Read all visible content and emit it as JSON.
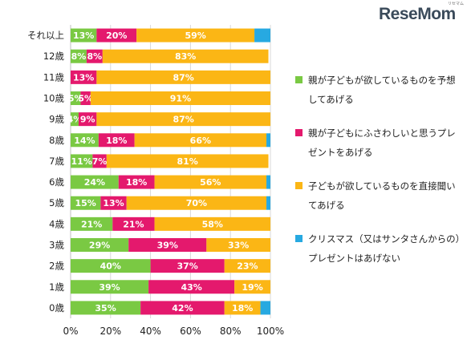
{
  "brand": {
    "logo_text": "ReseMom",
    "logo_sub": "リセマム"
  },
  "legend": [
    {
      "label": "親が子どもが欲しているものを予想してあげる",
      "color": "#7ac943"
    },
    {
      "label": "親が子どもにふさわしいと思うプレゼントをあげる",
      "color": "#e4196d"
    },
    {
      "label": "子どもが欲しているものを直接聞いてあげる",
      "color": "#fbb615"
    },
    {
      "label": "クリスマス（又はサンタさんからの）プレゼントはあげない",
      "color": "#27a9e1"
    }
  ],
  "chart_data": {
    "type": "bar",
    "orientation": "horizontal",
    "stacked": true,
    "categories": [
      "それ以上",
      "12歳",
      "11歳",
      "10歳",
      "9歳",
      "8歳",
      "7歳",
      "6歳",
      "5歳",
      "4歳",
      "3歳",
      "2歳",
      "1歳",
      "0歳"
    ],
    "series": [
      {
        "name": "親が子どもが欲しているものを予想してあげる",
        "color": "#7ac943",
        "values": [
          13,
          8,
          0,
          5,
          4,
          14,
          11,
          24,
          15,
          21,
          29,
          40,
          39,
          35
        ]
      },
      {
        "name": "親が子どもにふさわしいと思うプレゼントをあげる",
        "color": "#e4196d",
        "values": [
          20,
          8,
          13,
          5,
          9,
          18,
          7,
          18,
          13,
          21,
          39,
          37,
          43,
          42
        ]
      },
      {
        "name": "子どもが欲しているものを直接聞いてあげる",
        "color": "#fbb615",
        "values": [
          59,
          83,
          87,
          91,
          87,
          66,
          81,
          56,
          70,
          58,
          33,
          23,
          19,
          18
        ]
      },
      {
        "name": "クリスマス（又はサンタさんからの）プレゼントはあげない",
        "color": "#27a9e1",
        "values": [
          8,
          0,
          0,
          0,
          0,
          2,
          0,
          2,
          2,
          0,
          0,
          0,
          0,
          5
        ]
      }
    ],
    "data_labels": [
      [
        "13%",
        "20%",
        "59%",
        ""
      ],
      [
        "8%",
        "8%",
        "83%",
        ""
      ],
      [
        "",
        "13%",
        "87%",
        ""
      ],
      [
        "5%",
        "5%",
        "91%",
        ""
      ],
      [
        "4%",
        "9%",
        "87%",
        ""
      ],
      [
        "14%",
        "18%",
        "66%",
        ""
      ],
      [
        "11%",
        "7%",
        "81%",
        ""
      ],
      [
        "24%",
        "18%",
        "56%",
        ""
      ],
      [
        "15%",
        "13%",
        "70%",
        ""
      ],
      [
        "21%",
        "21%",
        "58%",
        ""
      ],
      [
        "29%",
        "39%",
        "33%",
        ""
      ],
      [
        "40%",
        "37%",
        "23%",
        ""
      ],
      [
        "39%",
        "43%",
        "19%",
        ""
      ],
      [
        "35%",
        "42%",
        "18%",
        ""
      ]
    ],
    "x_ticks": [
      "0%",
      "20%",
      "40%",
      "60%",
      "80%",
      "100%"
    ],
    "xlim": [
      0,
      100
    ],
    "grid": true,
    "legend_position": "right"
  }
}
